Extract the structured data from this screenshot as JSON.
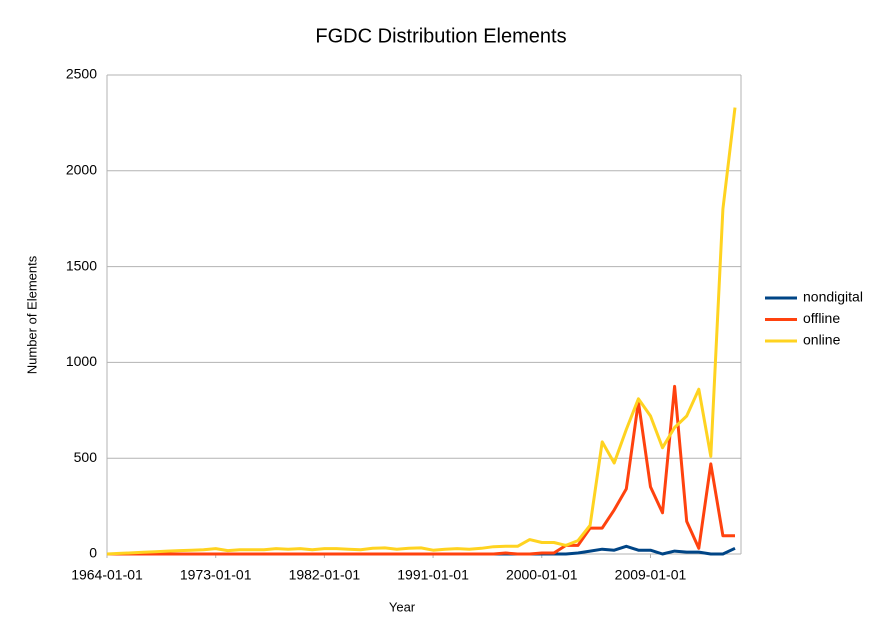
{
  "chart_data": {
    "type": "line",
    "title": "FGDC Distribution Elements",
    "x_label": "Year",
    "y_label": "Number of Elements",
    "x": [
      "1964-01-01",
      "1965-01-01",
      "1966-01-01",
      "1967-01-01",
      "1968-01-01",
      "1969-01-01",
      "1970-01-01",
      "1971-01-01",
      "1972-01-01",
      "1973-01-01",
      "1974-01-01",
      "1975-01-01",
      "1976-01-01",
      "1977-01-01",
      "1978-01-01",
      "1979-01-01",
      "1980-01-01",
      "1981-01-01",
      "1982-01-01",
      "1983-01-01",
      "1984-01-01",
      "1985-01-01",
      "1986-01-01",
      "1987-01-01",
      "1988-01-01",
      "1989-01-01",
      "1990-01-01",
      "1991-01-01",
      "1992-01-01",
      "1993-01-01",
      "1994-01-01",
      "1995-01-01",
      "1996-01-01",
      "1997-01-01",
      "1998-01-01",
      "1999-01-01",
      "2000-01-01",
      "2001-01-01",
      "2002-01-01",
      "2003-01-01",
      "2004-01-01",
      "2005-01-01",
      "2006-01-01",
      "2007-01-01",
      "2008-01-01",
      "2009-01-01",
      "2010-01-01",
      "2011-01-01",
      "2012-01-01",
      "2013-01-01",
      "2014-01-01",
      "2015-01-01",
      "2016-01-01"
    ],
    "series": [
      {
        "name": "nondigital",
        "color": "#004586",
        "values": [
          0,
          0,
          0,
          0,
          0,
          0,
          0,
          0,
          0,
          0,
          0,
          0,
          0,
          0,
          0,
          0,
          0,
          0,
          0,
          0,
          0,
          0,
          0,
          0,
          0,
          0,
          0,
          0,
          0,
          0,
          0,
          0,
          0,
          0,
          0,
          0,
          0,
          0,
          0,
          5,
          15,
          25,
          20,
          40,
          20,
          20,
          0,
          15,
          10,
          10,
          0,
          0,
          30
        ]
      },
      {
        "name": "offline",
        "color": "#ff420e",
        "values": [
          0,
          0,
          0,
          0,
          0,
          0,
          0,
          0,
          0,
          0,
          0,
          0,
          0,
          0,
          0,
          0,
          0,
          0,
          0,
          0,
          0,
          0,
          0,
          0,
          0,
          0,
          0,
          0,
          0,
          0,
          0,
          0,
          0,
          5,
          0,
          0,
          5,
          5,
          45,
          45,
          135,
          135,
          230,
          340,
          795,
          350,
          215,
          875,
          170,
          30,
          470,
          95,
          95
        ]
      },
      {
        "name": "online",
        "color": "#ffd320",
        "values": [
          0,
          3,
          6,
          9,
          12,
          15,
          18,
          20,
          22,
          28,
          18,
          22,
          22,
          22,
          28,
          25,
          28,
          22,
          28,
          28,
          25,
          22,
          30,
          32,
          25,
          30,
          32,
          20,
          25,
          28,
          25,
          30,
          38,
          40,
          40,
          75,
          60,
          60,
          45,
          70,
          150,
          585,
          475,
          650,
          810,
          720,
          555,
          660,
          720,
          860,
          510,
          1800,
          2330
        ]
      }
    ],
    "xlim": [
      "1964-01-01",
      "2016-07-01"
    ],
    "xticks": [
      "1964-01-01",
      "1973-01-01",
      "1982-01-01",
      "1991-01-01",
      "2000-01-01",
      "2009-01-01"
    ],
    "ylim": [
      0,
      2500
    ],
    "yticks": [
      0,
      500,
      1000,
      1500,
      2000,
      2500
    ],
    "grid": true,
    "legend": "right"
  }
}
